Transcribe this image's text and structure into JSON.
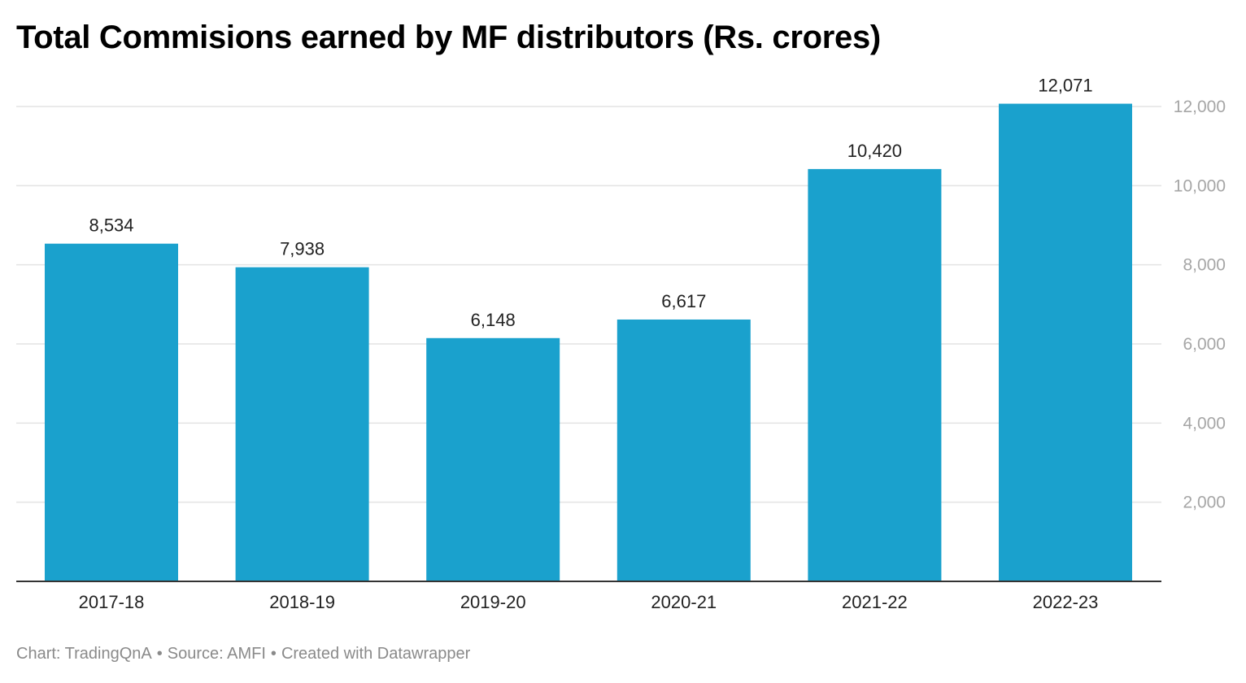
{
  "chart_data": {
    "type": "bar",
    "title": "Total Commisions earned by MF distributors (Rs. crores)",
    "categories": [
      "2017-18",
      "2018-19",
      "2019-20",
      "2020-21",
      "2021-22",
      "2022-23"
    ],
    "values": [
      8534,
      7938,
      6148,
      6617,
      10420,
      12071
    ],
    "value_labels": [
      "8,534",
      "7,938",
      "6,148",
      "6,617",
      "10,420",
      "12,071"
    ],
    "y_ticks": [
      2000,
      4000,
      6000,
      8000,
      10000,
      12000
    ],
    "y_tick_labels": [
      "2,000",
      "4,000",
      "6,000",
      "8,000",
      "10,000",
      "12,000"
    ],
    "ylim": [
      0,
      12000
    ],
    "xlabel": "",
    "ylabel": "",
    "grid": true,
    "y_axis_position": "right",
    "bar_color": "#1aa1cd"
  },
  "footer": {
    "chart_credit": "Chart: TradingQnA",
    "source": "Source: AMFI",
    "created_with": "Created with Datawrapper",
    "separator": "•"
  }
}
